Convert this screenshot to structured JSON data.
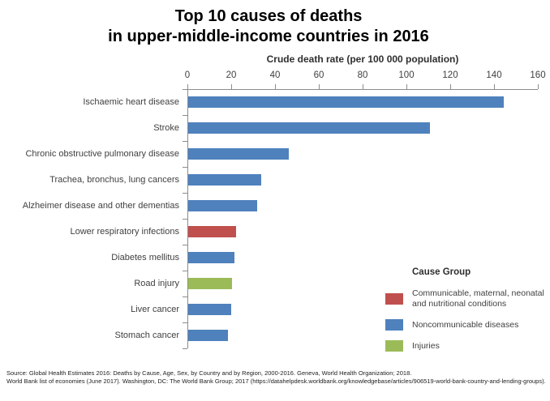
{
  "title": {
    "line1": "Top 10 causes of deaths",
    "line2": "in upper-middle-income countries in 2016"
  },
  "axis": {
    "title": "Crude death rate (per 100 000 population)"
  },
  "legend": {
    "title": "Cause Group",
    "items": [
      {
        "id": "communicable",
        "label": "Communicable, maternal, neonatal and nutritional conditions",
        "color": "#c0504d"
      },
      {
        "id": "noncommunicable",
        "label": "Noncommunicable diseases",
        "color": "#4f81bd"
      },
      {
        "id": "injuries",
        "label": "Injuries",
        "color": "#9bbb59"
      }
    ]
  },
  "footer": {
    "line1": "Source: Global Health Estimates 2016: Deaths by Cause, Age, Sex, by Country and by Region, 2000-2016. Geneva, World Health Organization; 2018.",
    "line2": "World Bank list of economies (June 2017). Washington, DC: The World Bank Group; 2017 (https://datahelpdesk.worldbank.org/knowledgebase/articles/906519-world-bank-country-and-lending-groups)."
  },
  "chart_data": {
    "type": "bar",
    "orientation": "horizontal",
    "title": "Top 10 causes of deaths in upper-middle-income countries in 2016",
    "xlabel": "Crude death rate (per 100 000 population)",
    "ylabel": "",
    "xlim": [
      0,
      160
    ],
    "xticks": [
      0,
      20,
      40,
      60,
      80,
      100,
      120,
      140,
      160
    ],
    "grid": false,
    "legend_title": "Cause Group",
    "legend_position": "right",
    "categories": [
      "Ischaemic heart disease",
      "Stroke",
      "Chronic obstructive pulmonary disease",
      "Trachea, bronchus, lung cancers",
      "Alzheimer disease and other dementias",
      "Lower respiratory infections",
      "Diabetes mellitus",
      "Road injury",
      "Liver cancer",
      "Stomach cancer"
    ],
    "values": [
      144,
      110.5,
      46,
      33.5,
      31.5,
      22,
      21,
      20,
      19.5,
      18
    ],
    "groups": [
      "Noncommunicable diseases",
      "Noncommunicable diseases",
      "Noncommunicable diseases",
      "Noncommunicable diseases",
      "Noncommunicable diseases",
      "Communicable, maternal, neonatal and nutritional conditions",
      "Noncommunicable diseases",
      "Injuries",
      "Noncommunicable diseases",
      "Noncommunicable diseases"
    ],
    "group_colors": {
      "Communicable, maternal, neonatal and nutritional conditions": "#c0504d",
      "Noncommunicable diseases": "#4f81bd",
      "Injuries": "#9bbb59"
    }
  }
}
